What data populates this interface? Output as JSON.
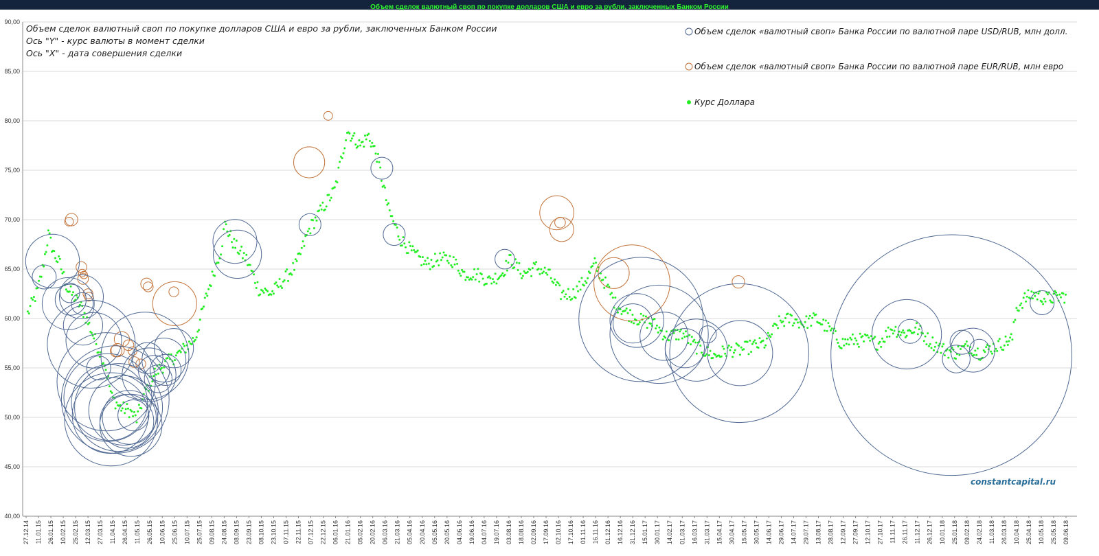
{
  "window": {
    "title": "Объем сделок валютный своп по покупке долларов США и евро за рубли, заключенных Банком России"
  },
  "annotations": [
    "Объем сделок валютный своп по покупке долларов США и евро за рубли, заключенных Банком России",
    "Ось \"Y\" -  курс валюты в момент сделки",
    "Ось \"X\" -  дата совершения сделки"
  ],
  "watermark": "constantcapital.ru",
  "colors": {
    "usd": "#4f6892",
    "eur": "#c2733a",
    "rate": "#22ee22",
    "grid": "#d9d9d9",
    "header": "#14243c"
  },
  "chart_data": {
    "type": "scatter",
    "ylim": [
      40,
      90
    ],
    "yticks": [
      "40,00",
      "45,00",
      "50,00",
      "55,00",
      "60,00",
      "65,00",
      "70,00",
      "75,00",
      "80,00",
      "85,00",
      "90,00"
    ],
    "xticks": [
      "27.12.14",
      "11.01.15",
      "26.01.15",
      "10.02.15",
      "25.02.15",
      "12.03.15",
      "27.03.15",
      "11.04.15",
      "26.04.15",
      "11.05.15",
      "26.05.15",
      "10.06.15",
      "25.06.15",
      "10.07.15",
      "25.07.15",
      "09.08.15",
      "24.08.15",
      "08.09.15",
      "23.09.15",
      "08.10.15",
      "23.10.15",
      "07.11.15",
      "22.11.15",
      "07.12.15",
      "22.12.15",
      "06.01.16",
      "21.01.16",
      "05.02.16",
      "20.02.16",
      "06.03.16",
      "21.03.16",
      "05.04.16",
      "20.04.16",
      "05.05.16",
      "20.05.16",
      "04.06.16",
      "19.06.16",
      "04.07.16",
      "19.07.16",
      "03.08.16",
      "18.08.16",
      "02.09.16",
      "17.09.16",
      "02.10.16",
      "17.10.16",
      "01.11.16",
      "16.11.16",
      "01.12.16",
      "16.12.16",
      "31.12.16",
      "15.01.17",
      "30.01.17",
      "14.02.17",
      "01.03.17",
      "16.03.17",
      "31.03.17",
      "15.04.17",
      "30.04.17",
      "15.05.17",
      "30.05.17",
      "14.06.17",
      "29.06.17",
      "14.07.17",
      "29.07.17",
      "13.08.17",
      "28.08.17",
      "12.09.17",
      "27.09.17",
      "12.10.17",
      "27.10.17",
      "11.11.17",
      "26.11.17",
      "11.12.17",
      "26.12.17",
      "10.01.18",
      "25.01.18",
      "09.02.18",
      "24.02.18",
      "11.03.18",
      "26.03.18",
      "10.04.18",
      "25.04.18",
      "10.05.18",
      "25.05.18",
      "09.06.18"
    ],
    "series": [
      {
        "name": "Объем сделок «валютный своп» Банка России по валютной паре USD/RUB, млн долл.",
        "kind": "bubble",
        "points": [
          {
            "x": "2015-01-18",
            "y": 64.2,
            "size": 300
          },
          {
            "x": "2015-01-28",
            "y": 65.8,
            "size": 1500
          },
          {
            "x": "2015-02-16",
            "y": 61.5,
            "size": 1400
          },
          {
            "x": "2015-02-18",
            "y": 62.6,
            "size": 200
          },
          {
            "x": "2015-02-19",
            "y": 61.9,
            "size": 500
          },
          {
            "x": "2015-03-04",
            "y": 62.2,
            "size": 1000
          },
          {
            "x": "2015-03-05",
            "y": 61.5,
            "size": 250
          },
          {
            "x": "2015-03-06",
            "y": 59.3,
            "size": 800
          },
          {
            "x": "2015-03-16",
            "y": 57.4,
            "size": 4000
          },
          {
            "x": "2015-03-19",
            "y": 57.8,
            "size": 1600
          },
          {
            "x": "2015-03-25",
            "y": 55.0,
            "size": 300
          },
          {
            "x": "2015-04-03",
            "y": 53.6,
            "size": 5000
          },
          {
            "x": "2015-04-05",
            "y": 52.0,
            "size": 4000
          },
          {
            "x": "2015-04-07",
            "y": 51.5,
            "size": 3000
          },
          {
            "x": "2015-04-08",
            "y": 50.2,
            "size": 3000
          },
          {
            "x": "2015-04-09",
            "y": 49.8,
            "size": 4500
          },
          {
            "x": "2015-04-14",
            "y": 51.8,
            "size": 6000
          },
          {
            "x": "2015-04-18",
            "y": 51.0,
            "size": 4000
          },
          {
            "x": "2015-04-24",
            "y": 50.7,
            "size": 2500
          },
          {
            "x": "2015-04-28",
            "y": 49.6,
            "size": 1500
          },
          {
            "x": "2015-05-01",
            "y": 50.0,
            "size": 1500
          },
          {
            "x": "2015-05-03",
            "y": 49.2,
            "size": 2000
          },
          {
            "x": "2015-05-06",
            "y": 50.2,
            "size": 500
          },
          {
            "x": "2015-05-20",
            "y": 56.2,
            "size": 4000
          },
          {
            "x": "2015-05-23",
            "y": 56.0,
            "size": 500
          },
          {
            "x": "2015-05-25",
            "y": 54.3,
            "size": 1500
          },
          {
            "x": "2015-05-31",
            "y": 54.7,
            "size": 500
          },
          {
            "x": "2015-06-05",
            "y": 53.9,
            "size": 400
          },
          {
            "x": "2015-06-12",
            "y": 55.8,
            "size": 1000
          },
          {
            "x": "2015-06-14",
            "y": 54.8,
            "size": 500
          },
          {
            "x": "2015-06-24",
            "y": 57.0,
            "size": 800
          },
          {
            "x": "2015-09-06",
            "y": 67.8,
            "size": 1000
          },
          {
            "x": "2015-09-09",
            "y": 66.5,
            "size": 1200
          },
          {
            "x": "2015-12-06",
            "y": 69.5,
            "size": 250
          },
          {
            "x": "2016-03-02",
            "y": 75.2,
            "size": 250
          },
          {
            "x": "2016-03-17",
            "y": 68.5,
            "size": 250
          },
          {
            "x": "2016-07-29",
            "y": 66.0,
            "size": 200
          },
          {
            "x": "2016-12-31",
            "y": 59.5,
            "size": 800
          },
          {
            "x": "2017-01-05",
            "y": 59.8,
            "size": 1500
          },
          {
            "x": "2017-01-10",
            "y": 59.9,
            "size": 8000
          },
          {
            "x": "2017-02-01",
            "y": 58.4,
            "size": 5000
          },
          {
            "x": "2017-02-07",
            "y": 58.2,
            "size": 1200
          },
          {
            "x": "2017-03-04",
            "y": 57.0,
            "size": 800
          },
          {
            "x": "2017-03-18",
            "y": 56.8,
            "size": 2000
          },
          {
            "x": "2017-04-01",
            "y": 58.4,
            "size": 150
          },
          {
            "x": "2017-05-09",
            "y": 56.5,
            "size": 10000
          },
          {
            "x": "2017-05-10",
            "y": 56.5,
            "size": 2200
          },
          {
            "x": "2017-11-28",
            "y": 58.4,
            "size": 2500
          },
          {
            "x": "2017-12-02",
            "y": 58.7,
            "size": 300
          },
          {
            "x": "2018-01-21",
            "y": 56.3,
            "size": 30000
          },
          {
            "x": "2018-01-27",
            "y": 55.9,
            "size": 400
          },
          {
            "x": "2018-02-03",
            "y": 57.6,
            "size": 300
          },
          {
            "x": "2018-02-16",
            "y": 56.8,
            "size": 1000
          },
          {
            "x": "2018-02-24",
            "y": 56.9,
            "size": 200
          },
          {
            "x": "2018-05-11",
            "y": 61.6,
            "size": 300
          }
        ]
      },
      {
        "name": "Объем сделок «валютный своп» Банка России по валютной паре EUR/RUB, млн евро",
        "kind": "bubble",
        "points": [
          {
            "x": "2015-02-17",
            "y": 69.8,
            "size": 40
          },
          {
            "x": "2015-02-20",
            "y": 70.0,
            "size": 80
          },
          {
            "x": "2015-03-04",
            "y": 65.2,
            "size": 60
          },
          {
            "x": "2015-03-05",
            "y": 64.6,
            "size": 30
          },
          {
            "x": "2015-03-06",
            "y": 64.0,
            "size": 60
          },
          {
            "x": "2015-03-07",
            "y": 64.4,
            "size": 30
          },
          {
            "x": "2015-03-12",
            "y": 62.5,
            "size": 50
          },
          {
            "x": "2015-03-13",
            "y": 62.2,
            "size": 40
          },
          {
            "x": "2015-04-15",
            "y": 56.7,
            "size": 70
          },
          {
            "x": "2015-04-17",
            "y": 56.8,
            "size": 90
          },
          {
            "x": "2015-04-22",
            "y": 57.9,
            "size": 120
          },
          {
            "x": "2015-04-30",
            "y": 57.3,
            "size": 60
          },
          {
            "x": "2015-05-05",
            "y": 56.7,
            "size": 40
          },
          {
            "x": "2015-05-07",
            "y": 55.6,
            "size": 60
          },
          {
            "x": "2015-05-15",
            "y": 55.4,
            "size": 50
          },
          {
            "x": "2015-05-22",
            "y": 63.5,
            "size": 70
          },
          {
            "x": "2015-05-24",
            "y": 63.2,
            "size": 50
          },
          {
            "x": "2015-06-25",
            "y": 61.5,
            "size": 1000
          },
          {
            "x": "2015-06-24",
            "y": 62.7,
            "size": 50
          },
          {
            "x": "2015-12-05",
            "y": 75.8,
            "size": 500
          },
          {
            "x": "2015-12-28",
            "y": 80.5,
            "size": 40
          },
          {
            "x": "2016-09-30",
            "y": 70.7,
            "size": 600
          },
          {
            "x": "2016-10-04",
            "y": 69.7,
            "size": 60
          },
          {
            "x": "2016-10-06",
            "y": 69.0,
            "size": 300
          },
          {
            "x": "2016-12-08",
            "y": 64.6,
            "size": 500
          },
          {
            "x": "2016-12-30",
            "y": 63.6,
            "size": 3000
          },
          {
            "x": "2017-05-08",
            "y": 63.7,
            "size": 80
          }
        ]
      },
      {
        "name": "Курс Доллара",
        "kind": "points",
        "anchors": [
          {
            "x": "2014-12-29",
            "y": 60.5
          },
          {
            "x": "2015-01-10",
            "y": 62.8
          },
          {
            "x": "2015-01-16",
            "y": 65.0
          },
          {
            "x": "2015-01-23",
            "y": 68.5
          },
          {
            "x": "2015-01-30",
            "y": 66.5
          },
          {
            "x": "2015-02-06",
            "y": 65.5
          },
          {
            "x": "2015-02-15",
            "y": 63.0
          },
          {
            "x": "2015-02-22",
            "y": 62.3
          },
          {
            "x": "2015-03-05",
            "y": 61.0
          },
          {
            "x": "2015-03-15",
            "y": 59.0
          },
          {
            "x": "2015-03-22",
            "y": 57.5
          },
          {
            "x": "2015-04-01",
            "y": 55.5
          },
          {
            "x": "2015-04-10",
            "y": 52.0
          },
          {
            "x": "2015-04-20",
            "y": 51.0
          },
          {
            "x": "2015-05-01",
            "y": 50.7
          },
          {
            "x": "2015-05-10",
            "y": 49.8
          },
          {
            "x": "2015-05-20",
            "y": 52.5
          },
          {
            "x": "2015-06-01",
            "y": 54.5
          },
          {
            "x": "2015-06-15",
            "y": 55.5
          },
          {
            "x": "2015-07-01",
            "y": 56.5
          },
          {
            "x": "2015-07-20",
            "y": 58.0
          },
          {
            "x": "2015-08-05",
            "y": 63.0
          },
          {
            "x": "2015-08-20",
            "y": 67.0
          },
          {
            "x": "2015-08-25",
            "y": 69.5
          },
          {
            "x": "2015-09-05",
            "y": 67.5
          },
          {
            "x": "2015-09-20",
            "y": 66.0
          },
          {
            "x": "2015-10-05",
            "y": 63.0
          },
          {
            "x": "2015-10-20",
            "y": 62.5
          },
          {
            "x": "2015-11-05",
            "y": 64.0
          },
          {
            "x": "2015-11-20",
            "y": 65.5
          },
          {
            "x": "2015-12-05",
            "y": 69.0
          },
          {
            "x": "2015-12-20",
            "y": 71.0
          },
          {
            "x": "2016-01-05",
            "y": 73.0
          },
          {
            "x": "2016-01-20",
            "y": 79.0
          },
          {
            "x": "2016-02-05",
            "y": 77.5
          },
          {
            "x": "2016-02-15",
            "y": 78.5
          },
          {
            "x": "2016-02-25",
            "y": 76.5
          },
          {
            "x": "2016-03-10",
            "y": 71.0
          },
          {
            "x": "2016-03-25",
            "y": 68.0
          },
          {
            "x": "2016-04-10",
            "y": 66.5
          },
          {
            "x": "2016-04-25",
            "y": 65.5
          },
          {
            "x": "2016-05-10",
            "y": 66.0
          },
          {
            "x": "2016-05-25",
            "y": 66.0
          },
          {
            "x": "2016-06-10",
            "y": 64.5
          },
          {
            "x": "2016-06-25",
            "y": 64.5
          },
          {
            "x": "2016-07-10",
            "y": 63.8
          },
          {
            "x": "2016-07-25",
            "y": 64.5
          },
          {
            "x": "2016-08-05",
            "y": 66.0
          },
          {
            "x": "2016-08-20",
            "y": 64.5
          },
          {
            "x": "2016-09-05",
            "y": 65.2
          },
          {
            "x": "2016-09-20",
            "y": 64.5
          },
          {
            "x": "2016-10-05",
            "y": 62.5
          },
          {
            "x": "2016-10-20",
            "y": 62.5
          },
          {
            "x": "2016-11-05",
            "y": 64.0
          },
          {
            "x": "2016-11-15",
            "y": 65.5
          },
          {
            "x": "2016-11-25",
            "y": 64.0
          },
          {
            "x": "2016-12-10",
            "y": 61.5
          },
          {
            "x": "2016-12-25",
            "y": 60.5
          },
          {
            "x": "2017-01-10",
            "y": 59.8
          },
          {
            "x": "2017-01-25",
            "y": 59.5
          },
          {
            "x": "2017-02-10",
            "y": 58.2
          },
          {
            "x": "2017-03-01",
            "y": 58.5
          },
          {
            "x": "2017-03-20",
            "y": 57.0
          },
          {
            "x": "2017-04-10",
            "y": 56.2
          },
          {
            "x": "2017-04-25",
            "y": 56.8
          },
          {
            "x": "2017-05-10",
            "y": 56.8
          },
          {
            "x": "2017-05-25",
            "y": 57.2
          },
          {
            "x": "2017-06-10",
            "y": 57.5
          },
          {
            "x": "2017-06-25",
            "y": 59.5
          },
          {
            "x": "2017-07-10",
            "y": 60.0
          },
          {
            "x": "2017-07-25",
            "y": 59.5
          },
          {
            "x": "2017-08-10",
            "y": 60.0
          },
          {
            "x": "2017-08-25",
            "y": 59.0
          },
          {
            "x": "2017-09-10",
            "y": 57.5
          },
          {
            "x": "2017-09-25",
            "y": 57.8
          },
          {
            "x": "2017-10-10",
            "y": 57.8
          },
          {
            "x": "2017-10-25",
            "y": 57.5
          },
          {
            "x": "2017-11-10",
            "y": 59.0
          },
          {
            "x": "2017-11-25",
            "y": 58.5
          },
          {
            "x": "2017-12-10",
            "y": 59.0
          },
          {
            "x": "2017-12-25",
            "y": 57.8
          },
          {
            "x": "2018-01-10",
            "y": 56.9
          },
          {
            "x": "2018-01-25",
            "y": 56.5
          },
          {
            "x": "2018-02-10",
            "y": 57.2
          },
          {
            "x": "2018-02-25",
            "y": 56.5
          },
          {
            "x": "2018-03-10",
            "y": 57.0
          },
          {
            "x": "2018-03-25",
            "y": 57.5
          },
          {
            "x": "2018-04-05",
            "y": 58.0
          },
          {
            "x": "2018-04-10",
            "y": 61.0
          },
          {
            "x": "2018-04-20",
            "y": 62.0
          },
          {
            "x": "2018-05-01",
            "y": 62.5
          },
          {
            "x": "2018-05-15",
            "y": 62.0
          },
          {
            "x": "2018-06-10",
            "y": 62.3
          }
        ]
      }
    ],
    "legend_position": "top-right",
    "grid": true
  }
}
